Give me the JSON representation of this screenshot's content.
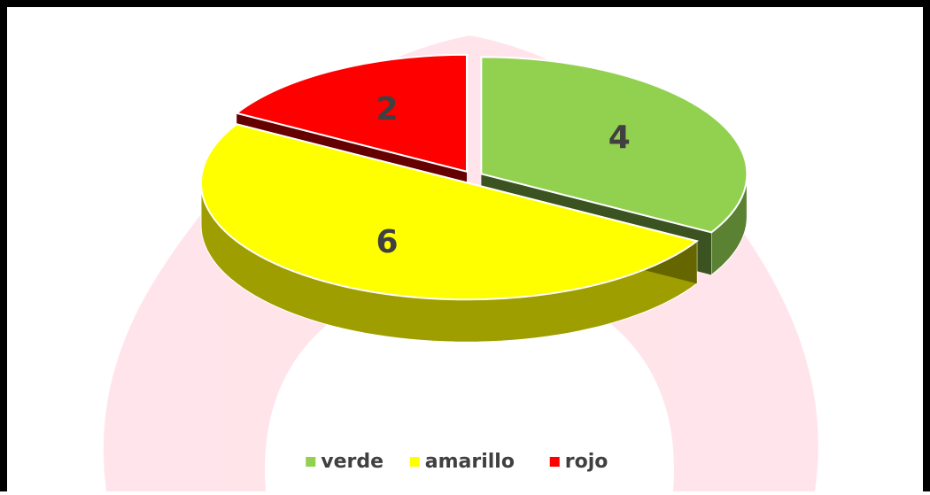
{
  "chart_data": {
    "type": "pie3d",
    "categories": [
      "verde",
      "amarillo",
      "rojo"
    ],
    "values": [
      4,
      6,
      2
    ],
    "colors": [
      "#92d050",
      "#ffff00",
      "#ff0000"
    ],
    "legend": "bottom"
  }
}
